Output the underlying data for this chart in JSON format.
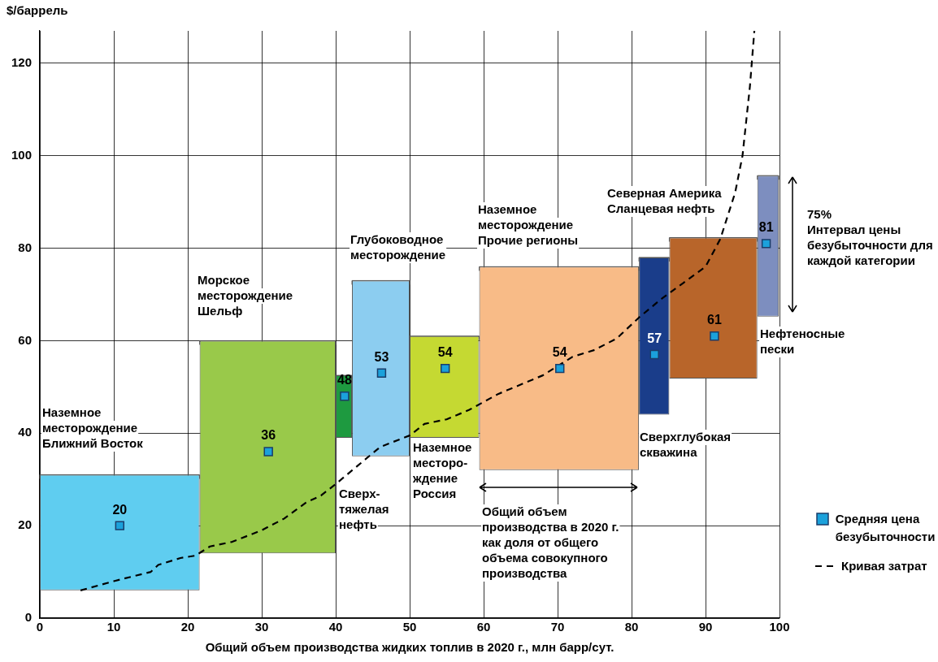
{
  "chart_data": {
    "type": "bar",
    "xlabel": "Общий объем производства жидких топлив в 2020 г., млн барр/сут.",
    "ylabel": "$/баррель",
    "xlim": [
      0,
      100
    ],
    "xticks": [
      0,
      10,
      20,
      30,
      40,
      50,
      60,
      70,
      80,
      90,
      100
    ],
    "ylim": [
      0,
      127
    ],
    "yticks": [
      0,
      20,
      40,
      60,
      80,
      100,
      120
    ],
    "grid": true,
    "legend": "right",
    "series": [
      {
        "x": [
          10.8,
          30.8,
          41.1,
          46.1,
          54.7,
          70.2,
          83.05,
          91.05,
          98.45
        ],
        "xerrors": [
          [
            0,
            21.6
          ],
          [
            21.6,
            40
          ],
          [
            40,
            42.2
          ],
          [
            42.2,
            50
          ],
          [
            50,
            59.4
          ],
          [
            59.4,
            81
          ],
          [
            81,
            85.1
          ],
          [
            85.1,
            97
          ],
          [
            97,
            99.9
          ]
        ],
        "base": [
          6,
          14,
          39,
          35,
          39,
          32,
          44,
          51.8,
          65.2
        ],
        "values": [
          25,
          46,
          13.5,
          38,
          22,
          44,
          34,
          30.5,
          30.5
        ],
        "colors": [
          "#5fcdf0",
          "#99c94a",
          "#1e9a40",
          "#8ccdf0",
          "#c5d932",
          "#f8bb87",
          "#1a3d8a",
          "#b8652a",
          "#7d8ebf"
        ]
      },
      {
        "type": "scatter",
        "name": "Средняя цена безубыточности",
        "color": "#1ba1db",
        "marker": "square",
        "x": [
          10.8,
          30.9,
          41.2,
          46.2,
          54.8,
          70.3,
          83.1,
          91.2,
          98.2
        ],
        "values": [
          20,
          36,
          48,
          53,
          54,
          54,
          57,
          61,
          81
        ],
        "value_labels": [
          "20",
          "36",
          "48",
          "53",
          "54",
          "54",
          "57",
          "61",
          "81"
        ]
      },
      {
        "type": "line",
        "name": "Кривая затрат",
        "color": "#000000",
        "line_style": "dashed",
        "x": [
          5.5,
          10,
          15,
          16,
          19,
          21,
          23,
          26,
          30,
          33,
          36,
          38,
          40,
          43,
          46,
          50,
          52,
          55,
          58,
          62,
          65,
          68,
          72,
          75,
          78,
          81,
          84,
          87,
          90,
          92,
          94,
          95,
          96,
          96.6
        ],
        "values": [
          6,
          8,
          10,
          11.5,
          13,
          13.5,
          15.5,
          16.5,
          19,
          21.5,
          25,
          26.5,
          29,
          33,
          37,
          39.5,
          42,
          43,
          45,
          48.5,
          50.5,
          52.5,
          56.5,
          58,
          60.5,
          65,
          69,
          72.5,
          76,
          82,
          92,
          100,
          115,
          127
        ]
      }
    ],
    "annotations": [
      "Наземное\nместорождение\nБлижний Восток",
      "Морское\nместорождение\nШельф",
      "Глубоководное\nместорождение",
      "Наземное\nместорождение\nПрочие регионы",
      "Северная Америка\nСланцевая нефть",
      "75%\nИнтервал цены\nбезубыточности для\nкаждой категории",
      "Нефтеносные\nпески",
      "Сверхглубокая\nскважина",
      "Сверх-\nтяжелая\nнефть",
      "Наземное\nместоро-\nждение\nРоссия",
      "Общий объем\nпроизводства в 2020 г.\nкак доля от общего\nобъема совокупного\nпроизводства"
    ]
  }
}
